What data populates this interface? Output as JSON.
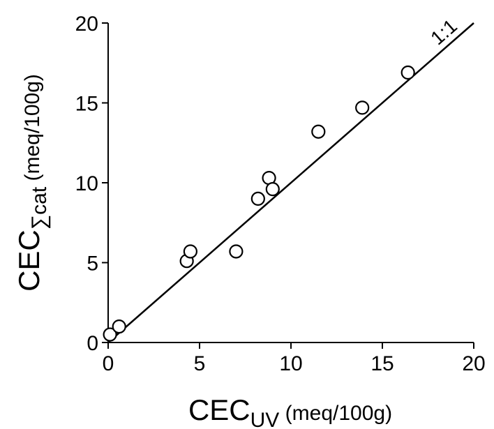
{
  "chart_data": {
    "type": "scatter",
    "title": "",
    "xlabel": {
      "main": "CEC",
      "sub": "UV",
      "unit": " (meq/100g)"
    },
    "ylabel": {
      "main": "CEC",
      "sub": "∑cat",
      "unit": " (meq/100g)"
    },
    "xlim": [
      0,
      20
    ],
    "ylim": [
      0,
      20
    ],
    "xticks": [
      0,
      5,
      10,
      15,
      20
    ],
    "yticks": [
      0,
      5,
      10,
      15,
      20
    ],
    "x_tick_labels": [
      "0",
      "5",
      "10",
      "15",
      "20"
    ],
    "y_tick_labels": [
      "0",
      "5",
      "10",
      "15",
      "20"
    ],
    "grid": false,
    "reference_line": {
      "label": "1:1",
      "from": [
        0,
        0
      ],
      "to": [
        20,
        20
      ]
    },
    "points": [
      {
        "x": 0.1,
        "y": 0.5
      },
      {
        "x": 0.6,
        "y": 1.0
      },
      {
        "x": 4.3,
        "y": 5.1
      },
      {
        "x": 4.5,
        "y": 5.7
      },
      {
        "x": 7.0,
        "y": 5.7
      },
      {
        "x": 8.2,
        "y": 9.0
      },
      {
        "x": 8.8,
        "y": 10.3
      },
      {
        "x": 9.0,
        "y": 9.6
      },
      {
        "x": 11.5,
        "y": 13.2
      },
      {
        "x": 13.9,
        "y": 14.7
      },
      {
        "x": 16.4,
        "y": 16.9
      }
    ],
    "marker": {
      "shape": "open-circle",
      "color": "#000000"
    }
  }
}
